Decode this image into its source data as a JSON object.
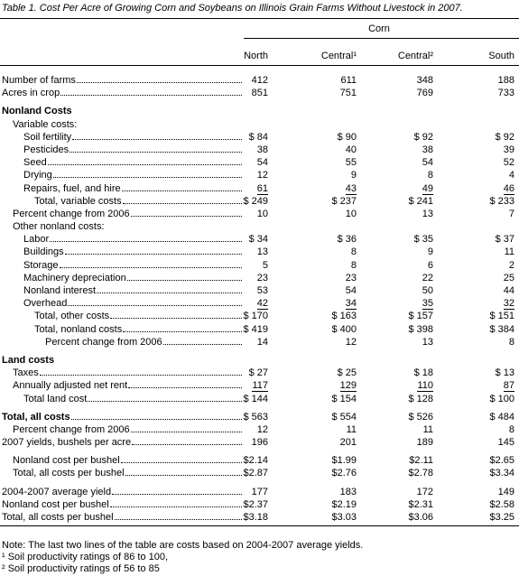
{
  "title": "Table 1.  Cost Per Acre of Growing Corn and Soybeans on Illinois Grain Farms Without Livestock in 2007.",
  "header": {
    "group": "Corn",
    "columns": [
      "North",
      "Central¹",
      "Central²",
      "South"
    ]
  },
  "rows": [
    {
      "label": "Number of farms",
      "values": [
        "412",
        "611",
        "348",
        "188"
      ]
    },
    {
      "label": "Acres in crop",
      "values": [
        "851",
        "751",
        "769",
        "733"
      ]
    },
    {
      "label": "Nonland Costs"
    },
    {
      "label": "Variable costs:"
    },
    {
      "label": "Soil fertility",
      "values": [
        "$ 84",
        "$ 90",
        "$ 92",
        "$ 92"
      ]
    },
    {
      "label": "Pesticides",
      "values": [
        "38",
        "40",
        "38",
        "39"
      ]
    },
    {
      "label": "Seed",
      "values": [
        "54",
        "55",
        "54",
        "52"
      ]
    },
    {
      "label": "Drying",
      "values": [
        "12",
        "9",
        "8",
        "4"
      ]
    },
    {
      "label": "Repairs, fuel, and hire",
      "values": [
        "61",
        "43",
        "49",
        "46"
      ]
    },
    {
      "label": "Total, variable costs",
      "values": [
        "$ 249",
        "$ 237",
        "$ 241",
        "$ 233"
      ]
    },
    {
      "label": "Percent change from 2006",
      "values": [
        "10",
        "10",
        "13",
        "7"
      ]
    },
    {
      "label": "Other nonland costs:"
    },
    {
      "label": "Labor",
      "values": [
        "$ 34",
        "$ 36",
        "$ 35",
        "$ 37"
      ]
    },
    {
      "label": "Buildings",
      "values": [
        "13",
        "8",
        "9",
        "11"
      ]
    },
    {
      "label": "Storage",
      "values": [
        "5",
        "8",
        "6",
        "2"
      ]
    },
    {
      "label": "Machinery depreciation",
      "values": [
        "23",
        "23",
        "22",
        "25"
      ]
    },
    {
      "label": "Nonland interest",
      "values": [
        "53",
        "54",
        "50",
        "44"
      ]
    },
    {
      "label": "Overhead",
      "values": [
        "42",
        "34",
        "35",
        "32"
      ]
    },
    {
      "label": "Total, other costs",
      "values": [
        "$ 170",
        "$ 163",
        "$ 157",
        "$ 151"
      ]
    },
    {
      "label": "Total, nonland costs",
      "values": [
        "$ 419",
        "$ 400",
        "$ 398",
        "$ 384"
      ]
    },
    {
      "label": "Percent change from 2006",
      "values": [
        "14",
        "12",
        "13",
        "8"
      ]
    },
    {
      "label": "Land costs"
    },
    {
      "label": "Taxes",
      "values": [
        "$ 27",
        "$ 25",
        "$ 18",
        "$ 13"
      ]
    },
    {
      "label": "Annually adjusted net rent",
      "values": [
        "117",
        "129",
        "110",
        "87"
      ]
    },
    {
      "label": "Total land cost",
      "values": [
        "$ 144",
        "$ 154",
        "$ 128",
        "$ 100"
      ]
    },
    {
      "label": "Total, all costs",
      "values": [
        "$ 563",
        "$ 554",
        "$ 526",
        "$ 484"
      ]
    },
    {
      "label": "Percent change from 2006",
      "values": [
        "12",
        "11",
        "11",
        "8"
      ]
    },
    {
      "label": "2007 yields, bushels per acre",
      "values": [
        "196",
        "201",
        "189",
        "145"
      ]
    },
    {
      "label": "Nonland cost per bushel",
      "values": [
        "$2.14",
        "$1.99",
        "$2.11",
        "$2.65"
      ]
    },
    {
      "label": "Total, all costs per bushel",
      "values": [
        "$2.87",
        "$2.76",
        "$2.78",
        "$3.34"
      ]
    },
    {
      "label": "2004-2007 average yield",
      "values": [
        "177",
        "183",
        "172",
        "149"
      ]
    },
    {
      "label": "Nonland cost per bushel",
      "values": [
        "$2.37",
        "$2.19",
        "$2.31",
        "$2.58"
      ]
    },
    {
      "label": "Total, all costs per bushel",
      "values": [
        "$3.18",
        "$3.03",
        "$3.06",
        "$3.25"
      ]
    }
  ],
  "notes": [
    "Note:  The last two lines of the table are costs based on 2004-2007 average yields.",
    "¹ Soil productivity ratings of 86 to 100,",
    "² Soil productivity ratings of 56 to 85"
  ]
}
